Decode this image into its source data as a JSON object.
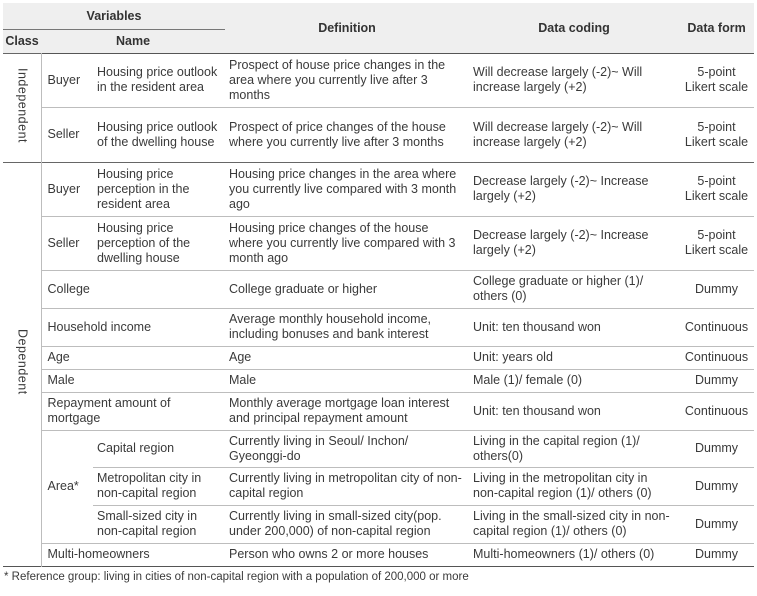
{
  "header": {
    "variables": "Variables",
    "class": "Class",
    "name": "Name",
    "definition": "Definition",
    "data_coding": "Data coding",
    "data_form": "Data form"
  },
  "groups": {
    "independent": "Independent",
    "dependent": "Dependent"
  },
  "rows": [
    {
      "name": "Buyer",
      "sub": "Housing price outlook in the resident area",
      "definition": "Prospect of house price changes in the area where you currently live after 3 months",
      "coding": "Will decrease largely (-2)~ Will increase largely (+2)",
      "form": "5-point Likert scale"
    },
    {
      "name": "Seller",
      "sub": "Housing price outlook of the dwelling house",
      "definition": "Prospect of price changes of the house where you currently live after 3 months",
      "coding": "Will decrease largely (-2)~ Will increase largely (+2)",
      "form": "5-point Likert scale"
    },
    {
      "name": "Buyer",
      "sub": "Housing price perception in the resident area",
      "definition": "Housing price changes in the area where you currently live compared with 3 month ago",
      "coding": "Decrease largely (-2)~ Increase largely (+2)",
      "form": "5-point Likert scale"
    },
    {
      "name": "Seller",
      "sub": "Housing price perception of the dwelling house",
      "definition": "Housing price changes of the house where you currently live compared with 3 month ago",
      "coding": "Decrease largely (-2)~ Increase largely (+2)",
      "form": "5-point Likert scale"
    },
    {
      "name": "College",
      "definition": "College graduate or higher",
      "coding": "College graduate or higher (1)/ others (0)",
      "form": "Dummy"
    },
    {
      "name": "Household income",
      "definition": "Average monthly household income, including bonuses and bank interest",
      "coding": "Unit: ten thousand won",
      "form": "Continuous"
    },
    {
      "name": "Age",
      "definition": "Age",
      "coding": "Unit: years old",
      "form": "Continuous"
    },
    {
      "name": "Male",
      "definition": "Male",
      "coding": "Male (1)/ female (0)",
      "form": "Dummy"
    },
    {
      "name": "Repayment amount of mortgage",
      "definition": "Monthly average mortgage loan interest and principal repayment amount",
      "coding": "Unit: ten thousand won",
      "form": "Continuous"
    },
    {
      "name": "Area*",
      "sub": "Capital region",
      "definition": "Currently living in Seoul/ Inchon/ Gyeonggi-do",
      "coding": "Living in the capital region (1)/ others(0)",
      "form": "Dummy"
    },
    {
      "sub": "Metropolitan city in non-capital region",
      "definition": "Currently living in metropolitan city of non-capital region",
      "coding": "Living in the metropolitan city in non-capital region (1)/ others (0)",
      "form": "Dummy"
    },
    {
      "sub": "Small-sized city in non-capital region",
      "definition": "Currently living in small-sized city(pop. under 200,000) of non-capital region",
      "coding": "Living in the small-sized city in non-capital region (1)/ others (0)",
      "form": "Dummy"
    },
    {
      "name": "Multi-homeowners",
      "definition": "Person who owns 2 or more houses",
      "coding": "Multi-homeowners (1)/ others (0)",
      "form": "Dummy"
    }
  ],
  "footnote": "* Reference group: living in cities of non-capital region with a population of 200,000 or more"
}
